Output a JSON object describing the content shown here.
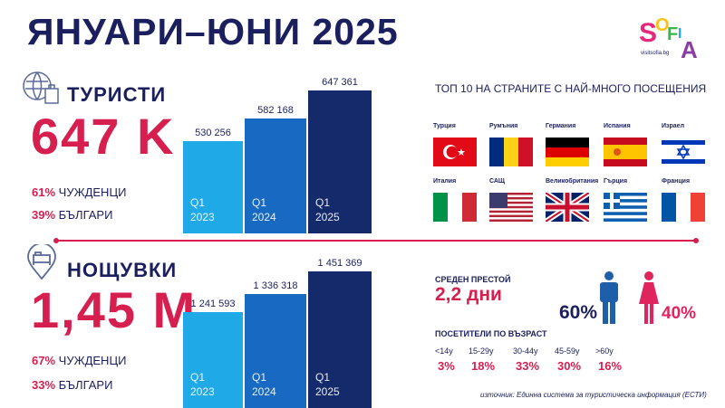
{
  "title": "ЯНУАРИ–ЮНИ 2025",
  "logo": {
    "text": "SOFIA",
    "url_text": "visitsofia.bg"
  },
  "tourists": {
    "heading": "ТУРИСТИ",
    "total": "647 K",
    "foreign": {
      "pct": "61%",
      "label": "ЧУЖДЕНЦИ"
    },
    "bulgarian": {
      "pct": "39%",
      "label": "БЪЛГАРИ"
    }
  },
  "nights": {
    "heading": "НОЩУВКИ",
    "total": "1,45 M",
    "foreign": {
      "pct": "67%",
      "label": "ЧУЖДЕНЦИ"
    },
    "bulgarian": {
      "pct": "33%",
      "label": "БЪЛГАРИ"
    }
  },
  "chart_data": [
    {
      "type": "bar",
      "title": "ТУРИСТИ",
      "categories": [
        "Q1 2023",
        "Q1 2024",
        "Q1 2025"
      ],
      "labels": [
        [
          "Q1",
          "2023"
        ],
        [
          "Q1",
          "2024"
        ],
        [
          "Q1",
          "2025"
        ]
      ],
      "values": [
        530256,
        582168,
        647361
      ],
      "value_labels": [
        "530 256",
        "582 168",
        "647 361"
      ],
      "colors": [
        "#1fa9e6",
        "#1769c1",
        "#152a6b"
      ],
      "ylim": [
        0,
        700000
      ]
    },
    {
      "type": "bar",
      "title": "НОЩУВКИ",
      "categories": [
        "Q1 2023",
        "Q1 2024",
        "Q1 2025"
      ],
      "labels": [
        [
          "Q1",
          "2023"
        ],
        [
          "Q1",
          "2024"
        ],
        [
          "Q1",
          "2025"
        ]
      ],
      "values": [
        1241593,
        1336318,
        1451369
      ],
      "value_labels": [
        "1 241 593",
        "1 336 318",
        "1 451 369"
      ],
      "colors": [
        "#1fa9e6",
        "#1769c1",
        "#152a6b"
      ],
      "ylim": [
        0,
        1600000
      ]
    }
  ],
  "top10": {
    "heading": "ТОП 10 НА СТРАНИТЕ С НАЙ-МНОГО ПОСЕЩЕНИЯ",
    "countries": [
      "Турция",
      "Румъния",
      "Германия",
      "Испания",
      "Израел",
      "Италия",
      "САЩ",
      "Великобритания",
      "Гърция",
      "Франция"
    ]
  },
  "stay": {
    "label": "СРЕДЕН ПРЕСТОЙ",
    "value": "2,2 дни"
  },
  "gender": {
    "male": "60%",
    "female": "40%",
    "male_color": "#1f5ea8",
    "female_color": "#e0245e"
  },
  "age": {
    "heading": "ПОСЕТИТЕЛИ ПО ВЪЗРАСТ",
    "groups": [
      {
        "label": "<14y",
        "pct": "3%"
      },
      {
        "label": "15-29y",
        "pct": "18%"
      },
      {
        "label": "30-44y",
        "pct": "33%"
      },
      {
        "label": "45-59y",
        "pct": "30%"
      },
      {
        "label": ">60y",
        "pct": "16%"
      }
    ]
  },
  "source": "източник: Единна система за туристическа информация (ЕСТИ)"
}
